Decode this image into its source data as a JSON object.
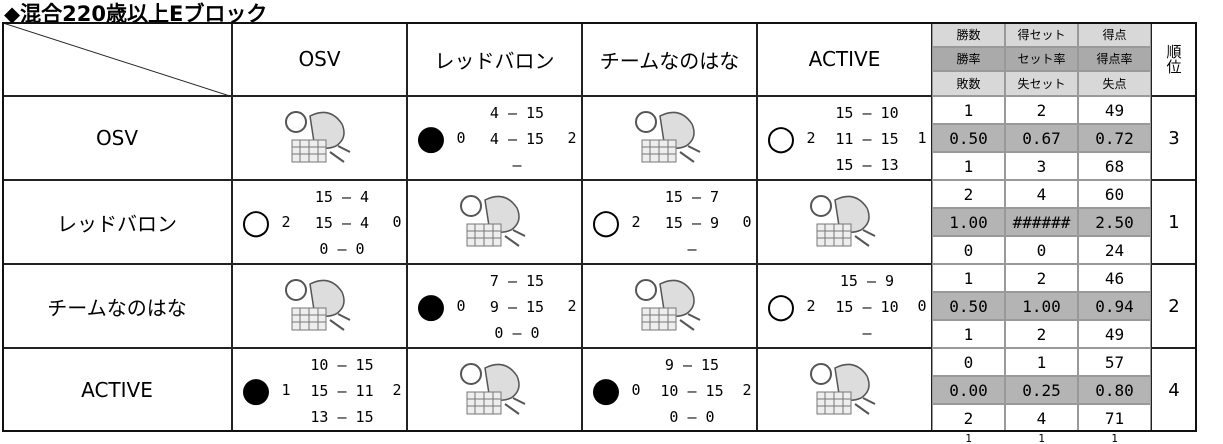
{
  "header": {
    "title": "◆混合220歳以上Eブロック"
  },
  "table": {
    "columns": [
      "OSV",
      "レッドバロン",
      "チームなのはな",
      "ACTIVE"
    ],
    "stat_headers": [
      [
        "勝数",
        "得セット",
        "得点"
      ],
      [
        "勝率",
        "セット率",
        "得点率"
      ],
      [
        "敗数",
        "失セット",
        "失点"
      ]
    ],
    "rank_header": "順位",
    "rows": [
      {
        "team": "OSV",
        "matches": [
          null,
          {
            "result": "●",
            "won": "0",
            "scores": [
              "4 — 15",
              "4 — 15",
              "—"
            ],
            "lost": "2"
          },
          null,
          {
            "result": "○",
            "won": "2",
            "scores": [
              "15 — 10",
              "11 — 15",
              "15 — 13"
            ],
            "lost": "1"
          }
        ],
        "stats": [
          [
            "1",
            "2",
            "49"
          ],
          [
            "0.50",
            "0.67",
            "0.72"
          ],
          [
            "1",
            "3",
            "68"
          ]
        ],
        "rank": "3"
      },
      {
        "team": "レッドバロン",
        "matches": [
          {
            "result": "○",
            "won": "2",
            "scores": [
              "15 — 4",
              "15 — 4",
              "0 — 0"
            ],
            "lost": "0"
          },
          null,
          {
            "result": "○",
            "won": "2",
            "scores": [
              "15 — 7",
              "15 — 9",
              "—"
            ],
            "lost": "0"
          },
          null
        ],
        "stats": [
          [
            "2",
            "4",
            "60"
          ],
          [
            "1.00",
            "######",
            "2.50"
          ],
          [
            "0",
            "0",
            "24"
          ]
        ],
        "rank": "1"
      },
      {
        "team": "チームなのはな",
        "matches": [
          null,
          {
            "result": "●",
            "won": "0",
            "scores": [
              "7 — 15",
              "9 — 15",
              "0 — 0"
            ],
            "lost": "2"
          },
          null,
          {
            "result": "○",
            "won": "2",
            "scores": [
              "15 — 9",
              "15 — 10",
              "—"
            ],
            "lost": "0"
          }
        ],
        "stats": [
          [
            "1",
            "2",
            "46"
          ],
          [
            "0.50",
            "1.00",
            "0.94"
          ],
          [
            "1",
            "2",
            "49"
          ]
        ],
        "rank": "2"
      },
      {
        "team": "ACTIVE",
        "matches": [
          {
            "result": "●",
            "won": "1",
            "scores": [
              "10 — 15",
              "15 — 11",
              "13 — 15"
            ],
            "lost": "2"
          },
          null,
          {
            "result": "●",
            "won": "0",
            "scores": [
              "9 — 15",
              "10 — 15",
              "0 — 0"
            ],
            "lost": "2"
          },
          null
        ],
        "stats": [
          [
            "0",
            "1",
            "57"
          ],
          [
            "0.00",
            "0.25",
            "0.80"
          ],
          [
            "2",
            "4",
            "71"
          ]
        ],
        "rank": "4"
      }
    ],
    "footer": [
      "1",
      "1",
      "1"
    ]
  }
}
